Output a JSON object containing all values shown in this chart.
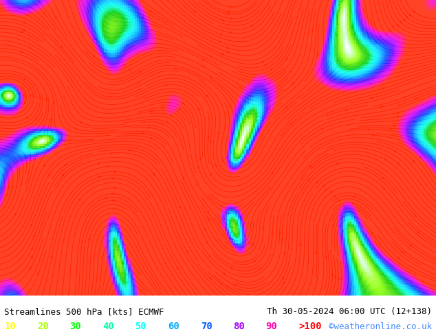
{
  "title_left": "Streamlines 500 hPa [kts] ECMWF",
  "title_right": "Th 30-05-2024 06:00 UTC (12+138)",
  "credit": "©weatheronline.co.uk",
  "legend_values": [
    "10",
    "20",
    "30",
    "40",
    "50",
    "60",
    "70",
    "80",
    "90",
    ">100"
  ],
  "legend_colors": [
    "#ffff00",
    "#aaff00",
    "#00ff00",
    "#00ffaa",
    "#00ffff",
    "#00aaff",
    "#0055ff",
    "#aa00ff",
    "#ff00aa",
    "#ff0000"
  ],
  "bg_color": "#ffffff",
  "streamline_color_map": [
    [
      0.0,
      "#ffffff"
    ],
    [
      0.05,
      "#e8ffe8"
    ],
    [
      0.1,
      "#ccffcc"
    ],
    [
      0.15,
      "#aaffaa"
    ],
    [
      0.2,
      "#ffff88"
    ],
    [
      0.25,
      "#88ff88"
    ],
    [
      0.3,
      "#44ff44"
    ],
    [
      0.4,
      "#00dd00"
    ],
    [
      0.5,
      "#00ffff"
    ],
    [
      0.6,
      "#0088ff"
    ],
    [
      0.7,
      "#0000ff"
    ],
    [
      0.8,
      "#8800ff"
    ],
    [
      0.9,
      "#ff00ff"
    ],
    [
      1.0,
      "#ff0000"
    ]
  ],
  "figsize": [
    6.34,
    4.9
  ],
  "dpi": 100,
  "map_bg": "#f0fff0",
  "text_color": "#000000",
  "title_fontsize": 9,
  "legend_fontsize": 9,
  "credit_color": "#4488ff"
}
